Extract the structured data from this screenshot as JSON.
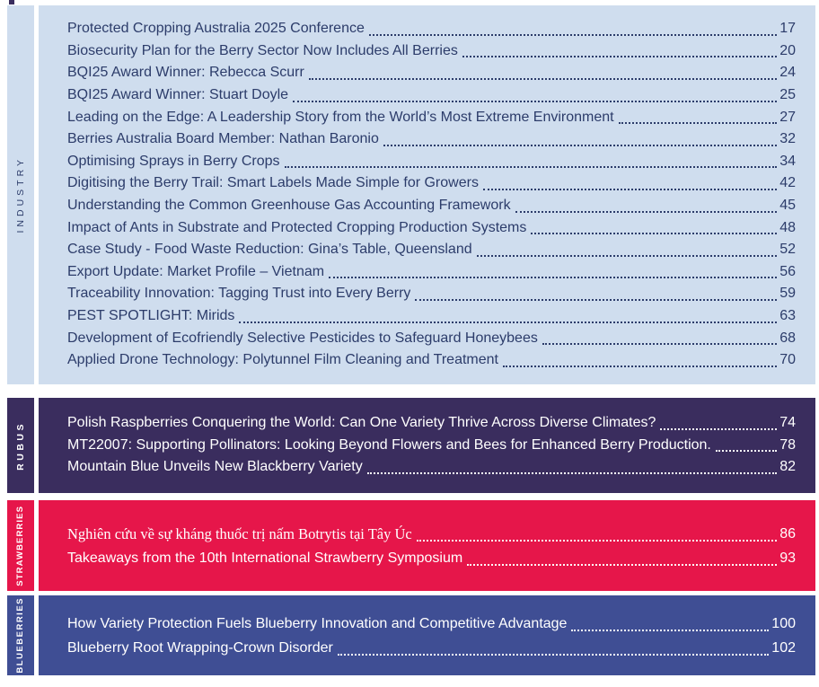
{
  "document": {
    "kind": "magazine-table-of-contents"
  },
  "sections": [
    {
      "id": "industry",
      "label": "INDUSTRY",
      "bg": "#cfddee",
      "fg": "#2c3c6a",
      "entries": [
        {
          "title": "Protected Cropping Australia 2025 Conference",
          "page": "17"
        },
        {
          "title": "Biosecurity Plan for the Berry Sector Now Includes All Berries",
          "page": "20"
        },
        {
          "title": "BQI25 Award Winner: Rebecca Scurr",
          "page": "24"
        },
        {
          "title": "BQI25 Award Winner: Stuart Doyle",
          "page": "25"
        },
        {
          "title": "Leading on the Edge: A Leadership Story from the World’s Most Extreme Environment",
          "page": "27"
        },
        {
          "title": "Berries Australia Board Member: Nathan Baronio",
          "page": "32"
        },
        {
          "title": "Optimising Sprays in Berry Crops",
          "page": "34"
        },
        {
          "title": "Digitising the Berry Trail: Smart Labels Made Simple for Growers",
          "page": "42"
        },
        {
          "title": "Understanding the Common Greenhouse Gas Accounting Framework",
          "page": "45"
        },
        {
          "title": "Impact of Ants in Substrate and Protected Cropping Production Systems",
          "page": "48"
        },
        {
          "title": "Case Study - Food Waste Reduction: Gina’s Table, Queensland",
          "page": "52"
        },
        {
          "title": "Export Update: Market Profile – Vietnam",
          "page": "56"
        },
        {
          "title": "Traceability Innovation: Tagging Trust into Every Berry",
          "page": "59"
        },
        {
          "title": "PEST SPOTLIGHT: Mirids",
          "page": "63"
        },
        {
          "title": "Development of Ecofriendly Selective Pesticides to Safeguard Honeybees",
          "page": "68"
        },
        {
          "title": "Applied Drone Technology: Polytunnel Film Cleaning and Treatment",
          "page": "70"
        }
      ]
    },
    {
      "id": "rubus",
      "label": "RUBUS",
      "bg": "#3a2d5e",
      "fg": "#ffffff",
      "entries": [
        {
          "title": "Polish Raspberries Conquering the World: Can One Variety Thrive Across Diverse Climates?",
          "page": "74"
        },
        {
          "title": "MT22007: Supporting Pollinators: Looking Beyond Flowers and Bees for Enhanced Berry Production.",
          "page": "78"
        },
        {
          "title": "Mountain Blue Unveils New Blackberry Variety",
          "page": "82"
        }
      ]
    },
    {
      "id": "strawberries",
      "label": "STRAWBERRIES",
      "bg": "#e6164a",
      "fg": "#ffffff",
      "entries": [
        {
          "title": "Nghiên cứu về sự kháng thuốc trị nấm Botrytis tại Tây Úc",
          "page": "86",
          "lang": "vi"
        },
        {
          "title": "Takeaways from the 10th International Strawberry Symposium",
          "page": "93"
        }
      ]
    },
    {
      "id": "blueberries",
      "label": "BLUEBERRIES",
      "bg": "#3f4e94",
      "fg": "#ffffff",
      "entries": [
        {
          "title": "How Variety Protection Fuels Blueberry Innovation and Competitive Advantage",
          "page": "100"
        },
        {
          "title": "Blueberry Root Wrapping-Crown Disorder",
          "page": "102"
        }
      ]
    }
  ]
}
